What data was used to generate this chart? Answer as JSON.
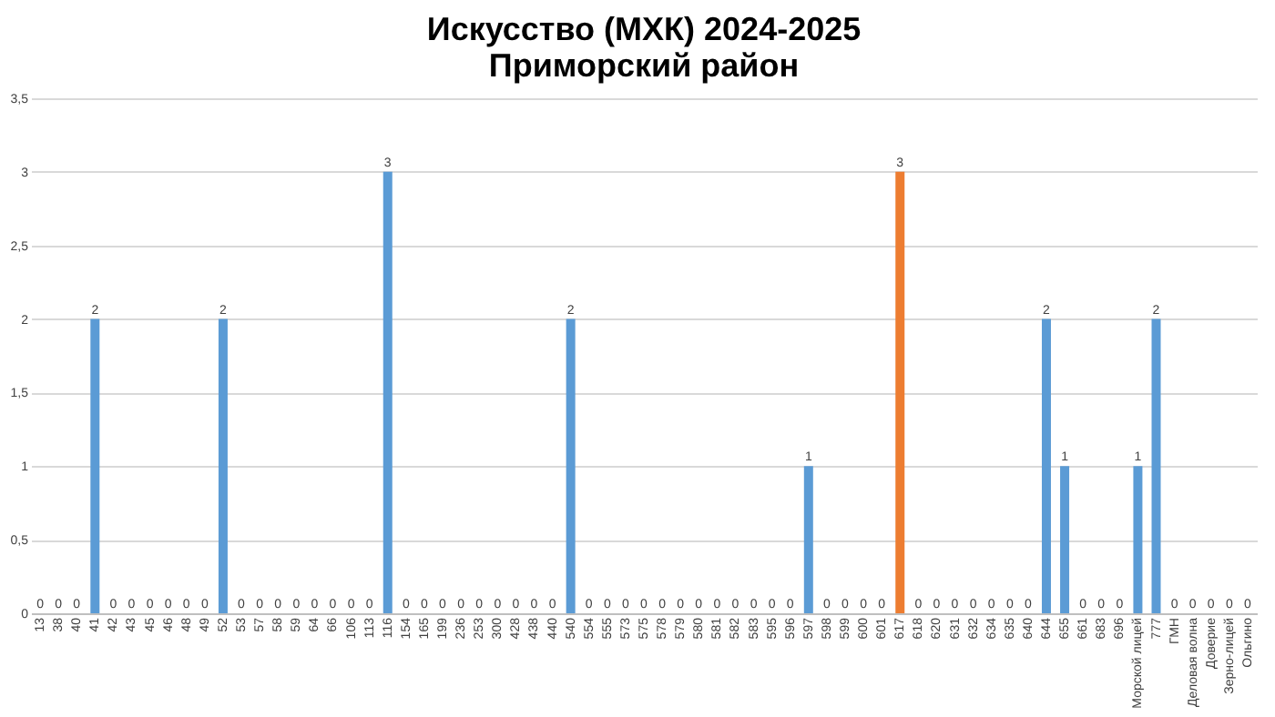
{
  "chart_data": {
    "type": "bar",
    "title": [
      "Искусство (МХК) 2024-2025",
      "Приморский район"
    ],
    "categories": [
      "13",
      "38",
      "40",
      "41",
      "42",
      "43",
      "45",
      "46",
      "48",
      "49",
      "52",
      "53",
      "57",
      "58",
      "59",
      "64",
      "66",
      "106",
      "113",
      "116",
      "154",
      "165",
      "199",
      "236",
      "253",
      "300",
      "428",
      "438",
      "440",
      "540",
      "554",
      "555",
      "573",
      "575",
      "578",
      "579",
      "580",
      "581",
      "582",
      "583",
      "595",
      "596",
      "597",
      "598",
      "599",
      "600",
      "601",
      "617",
      "618",
      "620",
      "631",
      "632",
      "634",
      "635",
      "640",
      "644",
      "655",
      "661",
      "683",
      "696",
      "Морской лицей",
      "777",
      "ГМН",
      "Деловая волна",
      "Доверие",
      "Зерно-лицей",
      "Ольгино"
    ],
    "values": [
      0,
      0,
      0,
      2,
      0,
      0,
      0,
      0,
      0,
      0,
      2,
      0,
      0,
      0,
      0,
      0,
      0,
      0,
      0,
      3,
      0,
      0,
      0,
      0,
      0,
      0,
      0,
      0,
      0,
      2,
      0,
      0,
      0,
      0,
      0,
      0,
      0,
      0,
      0,
      0,
      0,
      0,
      1,
      0,
      0,
      0,
      0,
      3,
      0,
      0,
      0,
      0,
      0,
      0,
      0,
      2,
      1,
      0,
      0,
      0,
      1,
      2,
      0,
      0,
      0,
      0,
      0
    ],
    "colors": [
      "#5b9bd5",
      "#5b9bd5",
      "#5b9bd5",
      "#5b9bd5",
      "#5b9bd5",
      "#5b9bd5",
      "#5b9bd5",
      "#5b9bd5",
      "#5b9bd5",
      "#5b9bd5",
      "#5b9bd5",
      "#5b9bd5",
      "#5b9bd5",
      "#5b9bd5",
      "#5b9bd5",
      "#5b9bd5",
      "#5b9bd5",
      "#5b9bd5",
      "#5b9bd5",
      "#5b9bd5",
      "#5b9bd5",
      "#5b9bd5",
      "#5b9bd5",
      "#5b9bd5",
      "#5b9bd5",
      "#5b9bd5",
      "#5b9bd5",
      "#5b9bd5",
      "#5b9bd5",
      "#5b9bd5",
      "#5b9bd5",
      "#5b9bd5",
      "#5b9bd5",
      "#5b9bd5",
      "#5b9bd5",
      "#5b9bd5",
      "#5b9bd5",
      "#5b9bd5",
      "#5b9bd5",
      "#5b9bd5",
      "#5b9bd5",
      "#5b9bd5",
      "#5b9bd5",
      "#5b9bd5",
      "#5b9bd5",
      "#5b9bd5",
      "#5b9bd5",
      "#ed7d31",
      "#5b9bd5",
      "#5b9bd5",
      "#5b9bd5",
      "#5b9bd5",
      "#5b9bd5",
      "#5b9bd5",
      "#5b9bd5",
      "#5b9bd5",
      "#5b9bd5",
      "#5b9bd5",
      "#5b9bd5",
      "#5b9bd5",
      "#5b9bd5",
      "#5b9bd5",
      "#5b9bd5",
      "#5b9bd5",
      "#5b9bd5",
      "#5b9bd5",
      "#5b9bd5"
    ],
    "ylim": [
      0,
      3.5
    ],
    "yticks": [
      0,
      {
        "value": 0.5,
        "label": "0,5"
      },
      1,
      {
        "value": 1.5,
        "label": "1,5"
      },
      2,
      {
        "value": 2.5,
        "label": "2,5"
      },
      3,
      {
        "value": 3.5,
        "label": "3,5"
      }
    ],
    "grid": "y",
    "data_labels": true
  }
}
